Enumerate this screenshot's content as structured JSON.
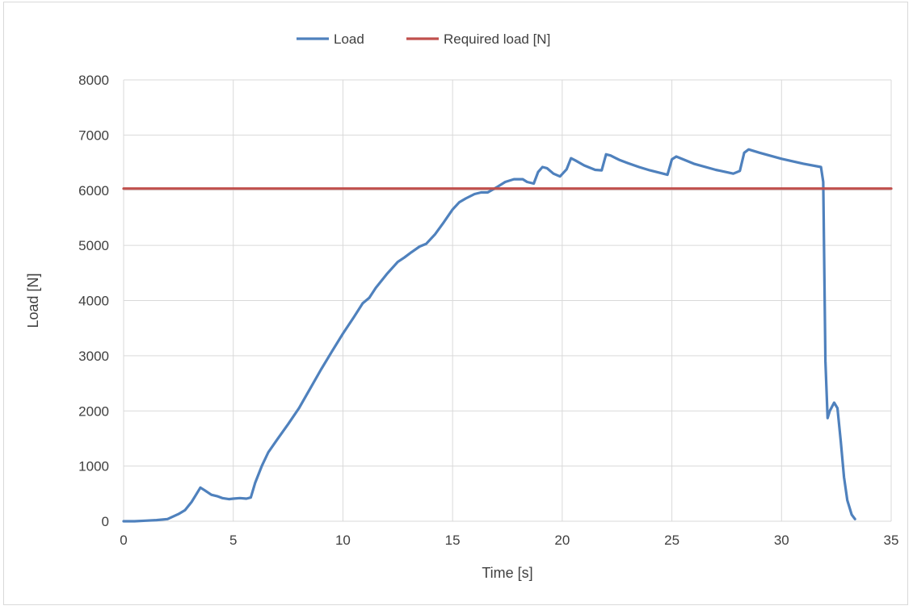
{
  "chart_data": {
    "type": "line",
    "title": "",
    "xlabel": "Time [s]",
    "ylabel": "Load [N]",
    "xlim": [
      0,
      35
    ],
    "ylim": [
      0,
      8000
    ],
    "x_ticks": [
      0,
      5,
      10,
      15,
      20,
      25,
      30,
      35
    ],
    "y_ticks": [
      0,
      1000,
      2000,
      3000,
      4000,
      5000,
      6000,
      7000,
      8000
    ],
    "x_tick_labels": [
      "0",
      "5",
      "10",
      "15",
      "20",
      "25",
      "30",
      "35"
    ],
    "y_tick_labels": [
      "0",
      "1000",
      "2000",
      "3000",
      "4000",
      "5000",
      "6000",
      "7000",
      "8000"
    ],
    "grid": true,
    "legend_position": "top-center",
    "series": [
      {
        "name": "Load",
        "color": "#4f81bd",
        "x": [
          0,
          0.5,
          1,
          1.5,
          2,
          2.5,
          2.8,
          3.1,
          3.3,
          3.5,
          3.7,
          4,
          4.3,
          4.5,
          4.8,
          5,
          5.3,
          5.6,
          5.8,
          6,
          6.3,
          6.6,
          7,
          7.5,
          8,
          8.5,
          9,
          9.5,
          10,
          10.5,
          10.9,
          11.2,
          11.5,
          12,
          12.5,
          12.8,
          13.1,
          13.5,
          13.8,
          14.2,
          14.6,
          15,
          15.3,
          15.6,
          16,
          16.3,
          16.6,
          17,
          17.4,
          17.8,
          18.2,
          18.4,
          18.7,
          18.9,
          19.1,
          19.3,
          19.6,
          19.9,
          20.2,
          20.4,
          20.6,
          21,
          21.5,
          21.8,
          22,
          22.2,
          22.6,
          23,
          23.5,
          24,
          24.6,
          24.8,
          25,
          25.2,
          26,
          27,
          27.8,
          28.1,
          28.3,
          28.5,
          29,
          30,
          31,
          31.8,
          31.9,
          32,
          32.1,
          32.2,
          32.4,
          32.55,
          32.7,
          32.85,
          33,
          33.2,
          33.35
        ],
        "y": [
          0,
          0,
          10,
          20,
          40,
          130,
          200,
          350,
          480,
          610,
          560,
          480,
          450,
          420,
          400,
          410,
          420,
          410,
          430,
          700,
          1000,
          1250,
          1480,
          1760,
          2050,
          2400,
          2750,
          3080,
          3400,
          3700,
          3950,
          4050,
          4230,
          4480,
          4700,
          4780,
          4870,
          4980,
          5030,
          5200,
          5420,
          5650,
          5780,
          5850,
          5930,
          5960,
          5960,
          6050,
          6150,
          6200,
          6200,
          6150,
          6120,
          6330,
          6420,
          6400,
          6300,
          6250,
          6380,
          6580,
          6540,
          6450,
          6370,
          6360,
          6650,
          6630,
          6550,
          6490,
          6420,
          6360,
          6300,
          6280,
          6560,
          6610,
          6480,
          6370,
          6300,
          6350,
          6680,
          6740,
          6680,
          6570,
          6480,
          6420,
          6150,
          2900,
          1870,
          2000,
          2150,
          2050,
          1450,
          800,
          380,
          120,
          40
        ]
      },
      {
        "name": "Required load [N]",
        "color": "#c0504d",
        "x": [
          0,
          35
        ],
        "y": [
          6030,
          6030
        ]
      }
    ]
  }
}
